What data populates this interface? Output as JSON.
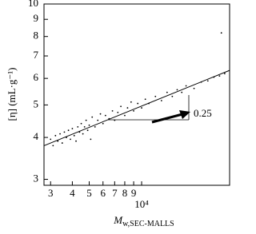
{
  "chart_data": {
    "type": "scatter",
    "x_label": {
      "main": "M",
      "sub": "w,SEC-MALLS"
    },
    "y_label": "[η] (mL·g⁻¹)",
    "xscale": "log",
    "yscale": "log",
    "xlim": [
      2750,
      32000
    ],
    "ylim": [
      2.88,
      10
    ],
    "xticks": [
      {
        "value": 3000,
        "label": "3"
      },
      {
        "value": 4000,
        "label": "4"
      },
      {
        "value": 5000,
        "label": "5"
      },
      {
        "value": 6000,
        "label": "6"
      },
      {
        "value": 7000,
        "label": "7"
      },
      {
        "value": 8000,
        "label": "8"
      },
      {
        "value": 9000,
        "label": "9"
      },
      {
        "value": 10000,
        "label": "10⁴"
      }
    ],
    "yticks": [
      3,
      4,
      5,
      6,
      7,
      8,
      9,
      10
    ],
    "color": "#000000",
    "x": [
      3000,
      3100,
      3200,
      3300,
      3400,
      3500,
      3600,
      3700,
      3800,
      3900,
      4000,
      4100,
      4200,
      4300,
      4400,
      4500,
      4600,
      4700,
      4800,
      4900,
      5000,
      5100,
      5200,
      5400,
      5600,
      5800,
      6000,
      6200,
      6500,
      6800,
      7000,
      7300,
      7600,
      8000,
      8300,
      8700,
      9000,
      9500,
      10000,
      10500,
      11000,
      12000,
      13000,
      14000,
      15000,
      16000,
      17000,
      18000,
      20000,
      22000,
      24000,
      26000,
      28000,
      30000,
      28700
    ],
    "values": [
      3.95,
      3.78,
      4.05,
      3.9,
      4.1,
      3.85,
      4.15,
      4.0,
      4.2,
      3.95,
      4.25,
      4.05,
      3.9,
      4.3,
      4.15,
      4.4,
      4.1,
      4.3,
      4.5,
      4.2,
      4.35,
      3.95,
      4.6,
      4.3,
      4.5,
      4.7,
      4.4,
      4.65,
      4.55,
      4.8,
      4.5,
      4.75,
      4.95,
      4.65,
      4.9,
      5.1,
      4.8,
      5.05,
      4.9,
      5.2,
      5.05,
      5.3,
      5.15,
      5.45,
      5.3,
      5.55,
      5.45,
      5.7,
      5.6,
      5.85,
      5.9,
      6.05,
      6.1,
      6.2,
      8.2
    ],
    "fit": {
      "x": [
        2750,
        32000
      ],
      "values": [
        3.78,
        6.34
      ]
    },
    "annotation": "0.25"
  }
}
